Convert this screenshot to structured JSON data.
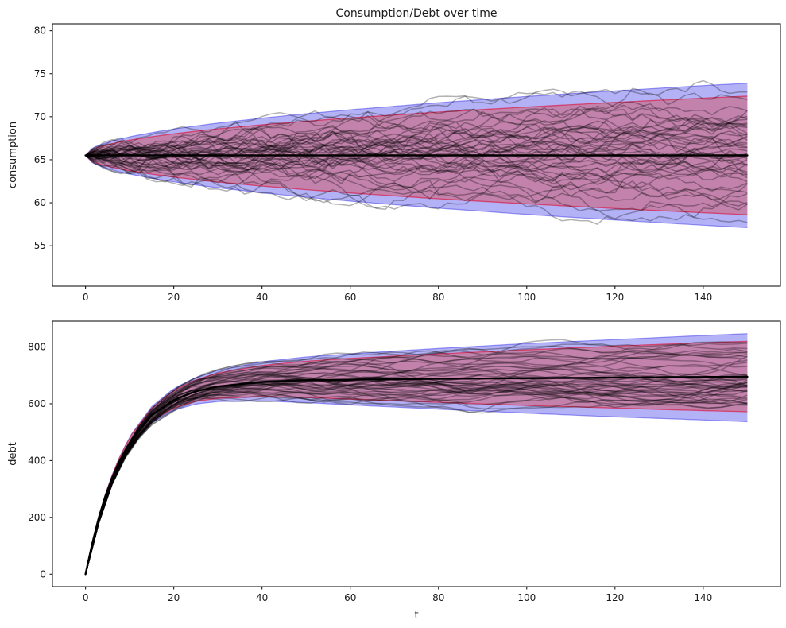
{
  "chart_data": {
    "type": "line",
    "title": "Consumption/Debt over time",
    "figure_bg": "#ffffff",
    "legend": "none",
    "grid": false,
    "colors": {
      "outer_band_fill": "rgba(40,35,230,0.35)",
      "outer_band_edge": "rgba(40,35,230,0.45)",
      "inner_band_fill": "rgba(215,65,70,0.42)",
      "inner_band_edge": "rgba(220,20,60,0.65)",
      "sample_path": "rgba(0,0,0,0.30)",
      "mean_line": "#000000",
      "axis": "#000000"
    },
    "t": [
      0,
      1,
      2,
      3,
      4,
      5,
      7,
      10,
      15,
      20,
      25,
      30,
      40,
      50,
      60,
      80,
      100,
      120,
      135,
      150
    ],
    "subplots": [
      {
        "name": "consumption",
        "ylabel": "consumption",
        "xlabel": "",
        "xticks": [
          0,
          20,
          40,
          60,
          80,
          100,
          120,
          140
        ],
        "yticks": [
          55,
          60,
          65,
          70,
          75,
          80
        ],
        "xlim": [
          -7.5,
          157.5
        ],
        "ylim": [
          50.3,
          80.8
        ],
        "mean": [
          65.5,
          65.5,
          65.5,
          65.5,
          65.5,
          65.5,
          65.5,
          65.5,
          65.5,
          65.5,
          65.5,
          65.5,
          65.5,
          65.5,
          65.5,
          65.5,
          65.5,
          65.5,
          65.5,
          65.5
        ],
        "band_outer_lower": [
          65.5,
          64.81,
          64.53,
          64.31,
          64.13,
          63.97,
          63.69,
          63.33,
          62.84,
          62.43,
          62.07,
          61.74,
          61.16,
          60.65,
          60.19,
          59.37,
          58.64,
          57.99,
          57.53,
          57.1
        ],
        "band_outer_upper": [
          65.5,
          66.19,
          66.47,
          66.69,
          66.87,
          67.03,
          67.31,
          67.67,
          68.16,
          68.57,
          68.93,
          69.26,
          69.84,
          70.35,
          70.81,
          71.63,
          72.36,
          73.01,
          73.47,
          73.9
        ],
        "band_inner_lower": [
          65.5,
          64.94,
          64.7,
          64.52,
          64.37,
          64.24,
          64.01,
          63.72,
          63.32,
          62.98,
          62.68,
          62.41,
          61.94,
          61.52,
          61.14,
          60.46,
          59.87,
          59.33,
          58.96,
          58.6
        ],
        "band_inner_upper": [
          65.5,
          66.06,
          66.3,
          66.48,
          66.63,
          66.76,
          66.99,
          67.28,
          67.68,
          68.02,
          68.32,
          68.59,
          69.06,
          69.48,
          69.86,
          70.54,
          71.13,
          71.67,
          72.04,
          72.4
        ],
        "sample_paths": {
          "count": 45,
          "seed": 20,
          "step": 2,
          "sigma_step": 0.46
        }
      },
      {
        "name": "debt",
        "ylabel": "debt",
        "xlabel": "t",
        "xticks": [
          0,
          20,
          40,
          60,
          80,
          100,
          120,
          140
        ],
        "yticks": [
          0,
          200,
          400,
          600,
          800
        ],
        "xlim": [
          -7.5,
          157.5
        ],
        "ylim": [
          -44,
          891
        ],
        "mean": [
          0,
          74,
          140,
          199,
          251,
          298,
          377,
          466,
          560,
          614,
          644,
          661,
          677,
          683,
          685,
          688,
          690,
          692,
          694,
          695
        ],
        "band_outer_lower": [
          0,
          73,
          138,
          196,
          246,
          291,
          367,
          449,
          533,
          577,
          599,
          608,
          610,
          604,
          596,
          581,
          567,
          554,
          546,
          537
        ],
        "band_outer_upper": [
          0,
          75,
          142,
          203,
          257,
          306,
          389,
          485,
          590,
          654,
          693,
          718,
          748,
          765,
          776,
          795,
          812,
          826,
          837,
          847
        ],
        "band_inner_lower": [
          0,
          74,
          139,
          197,
          247,
          293,
          369,
          453,
          539,
          585,
          609,
          619,
          625,
          622,
          616,
          605,
          594,
          585,
          578,
          572
        ],
        "band_inner_upper": [
          0,
          75,
          142,
          202,
          256,
          305,
          387,
          482,
          585,
          647,
          684,
          708,
          735,
          750,
          760,
          776,
          790,
          803,
          812,
          820
        ],
        "sample_paths": {
          "count": 45,
          "seed": 77,
          "step": 3,
          "sigma_step": 11
        }
      }
    ]
  }
}
